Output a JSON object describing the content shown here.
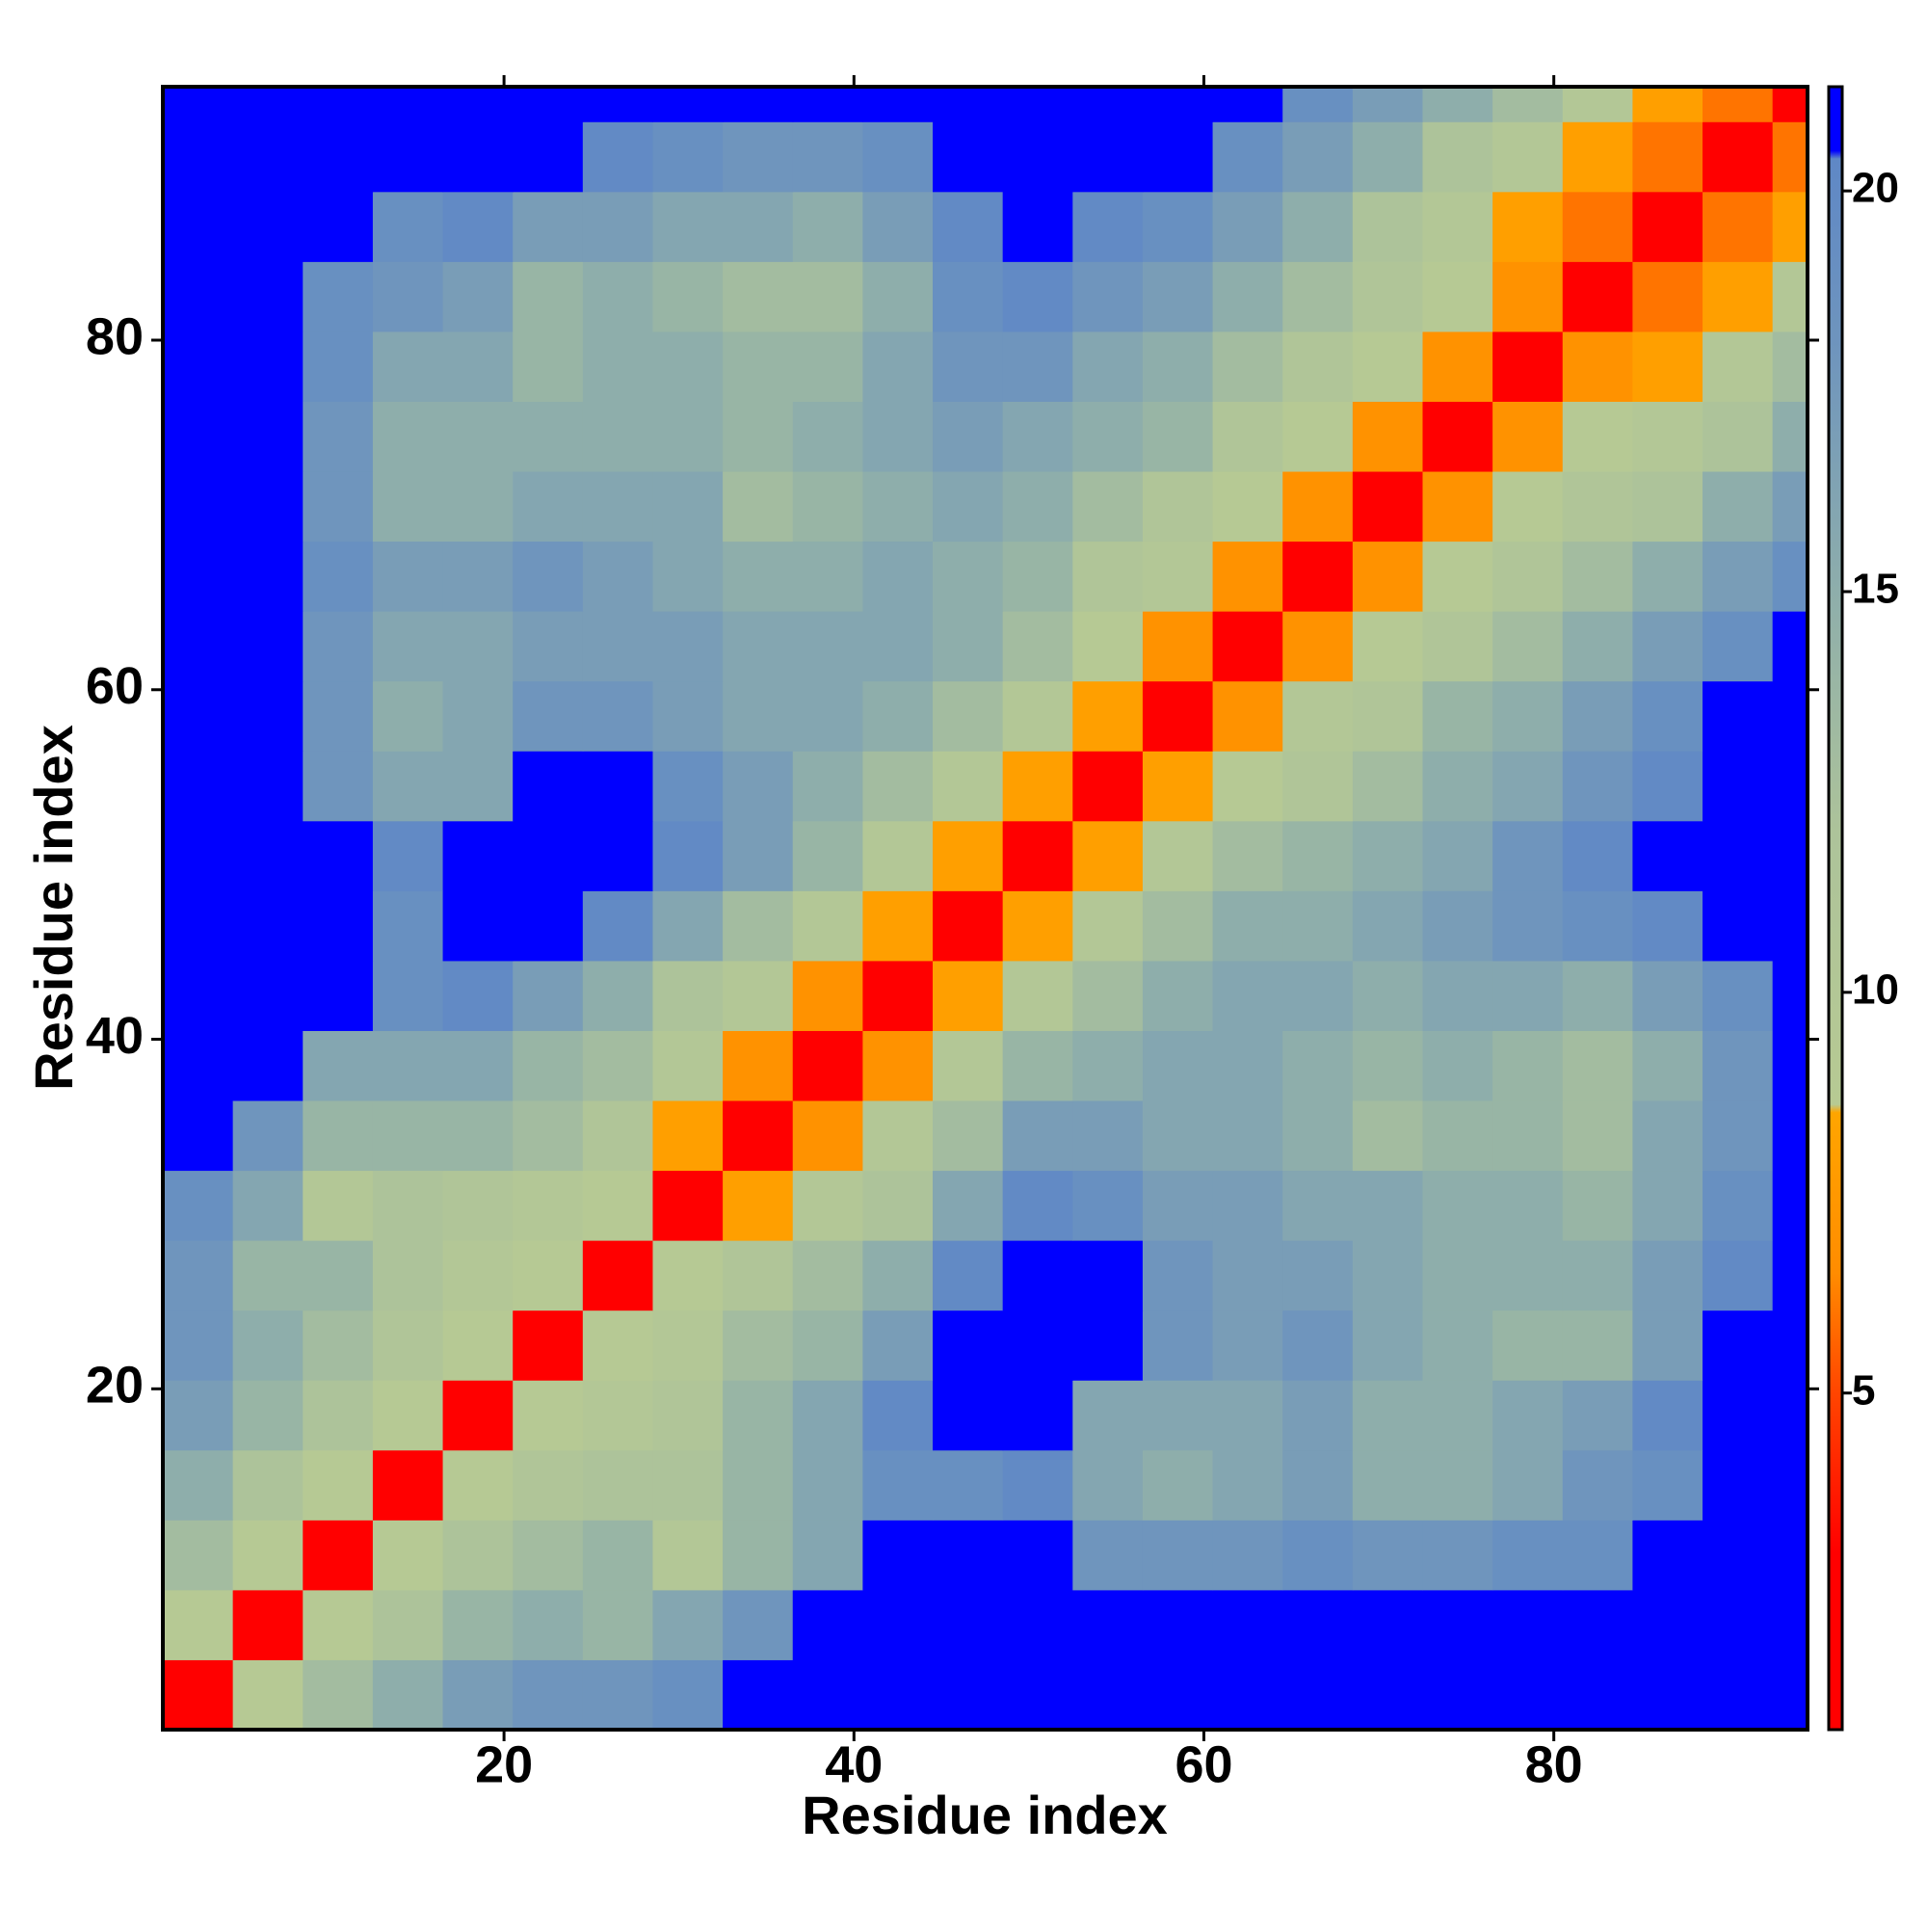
{
  "chart_data": {
    "type": "heatmap",
    "x_label": "Residue index",
    "y_label": "Residue index",
    "xbins": [
      0.5,
      4.5,
      8.5,
      12.5,
      16.5,
      20.5,
      24.5,
      28.5,
      32.5,
      36.5,
      40.5,
      44.5,
      48.5,
      52.5,
      56.5,
      60.5,
      64.5,
      68.5,
      72.5,
      76.5,
      80.5,
      84.5,
      88.5,
      92.5,
      94.5
    ],
    "ybins": [
      0.5,
      4.5,
      8.5,
      12.5,
      16.5,
      20.5,
      24.5,
      28.5,
      32.5,
      36.5,
      40.5,
      44.5,
      48.5,
      52.5,
      56.5,
      60.5,
      64.5,
      68.5,
      72.5,
      76.5,
      80.5,
      84.5,
      88.5,
      92.5,
      94.5
    ],
    "z": [
      [
        2,
        9,
        13,
        15,
        17,
        18,
        18,
        19,
        21,
        21,
        21,
        21,
        21,
        21,
        21,
        21,
        21,
        21,
        21,
        21,
        21,
        21,
        21,
        21
      ],
      [
        9,
        2,
        9,
        12,
        14,
        15,
        14,
        16,
        18,
        21,
        21,
        21,
        21,
        21,
        21,
        21,
        21,
        21,
        21,
        21,
        21,
        21,
        21,
        21
      ],
      [
        13,
        9,
        2,
        9,
        12,
        13,
        14,
        10,
        14,
        16,
        21,
        21,
        21,
        18,
        18,
        18,
        19,
        18,
        18,
        19,
        19,
        21,
        21,
        21
      ],
      [
        15,
        12,
        9,
        2,
        9,
        11,
        12,
        12,
        14,
        16,
        19,
        19,
        20,
        16,
        15,
        16,
        17,
        15,
        15,
        16,
        18,
        19,
        21,
        21
      ],
      [
        17,
        14,
        12,
        9,
        2,
        9,
        10,
        11,
        14,
        16,
        20,
        21,
        21,
        16,
        16,
        16,
        17,
        15,
        15,
        16,
        17,
        20,
        21,
        21
      ],
      [
        18,
        15,
        13,
        11,
        9,
        2,
        9,
        10,
        13,
        14,
        17,
        21,
        21,
        21,
        18,
        17,
        18,
        16,
        15,
        14,
        14,
        17,
        21,
        21
      ],
      [
        18,
        14,
        14,
        12,
        10,
        9,
        2,
        9,
        11,
        13,
        15,
        20,
        21,
        21,
        18,
        17,
        17,
        16,
        15,
        15,
        15,
        17,
        20,
        21
      ],
      [
        19,
        16,
        10,
        12,
        11,
        10,
        9,
        2,
        8,
        10,
        12,
        16,
        20,
        19,
        17,
        17,
        16,
        16,
        15,
        15,
        14,
        16,
        19,
        21
      ],
      [
        21,
        18,
        14,
        14,
        14,
        13,
        11,
        8,
        2,
        7,
        10,
        13,
        17,
        17,
        16,
        16,
        15,
        13,
        14,
        14,
        13,
        16,
        18,
        21
      ],
      [
        21,
        21,
        16,
        16,
        16,
        14,
        13,
        10,
        7,
        2,
        7,
        10,
        14,
        15,
        16,
        16,
        15,
        14,
        15,
        14,
        13,
        15,
        18,
        21
      ],
      [
        21,
        21,
        21,
        19,
        20,
        17,
        15,
        12,
        10,
        7,
        2,
        8,
        10,
        13,
        15,
        16,
        16,
        15,
        16,
        16,
        15,
        17,
        19,
        21
      ],
      [
        21,
        21,
        21,
        19,
        21,
        21,
        20,
        16,
        13,
        10,
        8,
        2,
        8,
        10,
        13,
        15,
        15,
        16,
        17,
        18,
        19,
        20,
        21,
        21
      ],
      [
        21,
        21,
        21,
        20,
        21,
        21,
        21,
        20,
        17,
        14,
        10,
        8,
        2,
        8,
        10,
        13,
        14,
        15,
        16,
        18,
        20,
        21,
        21,
        21
      ],
      [
        21,
        21,
        18,
        16,
        16,
        21,
        21,
        19,
        17,
        15,
        13,
        10,
        8,
        2,
        8,
        9,
        11,
        13,
        15,
        16,
        18,
        20,
        21,
        21
      ],
      [
        21,
        21,
        18,
        15,
        16,
        18,
        18,
        17,
        16,
        16,
        15,
        13,
        10,
        8,
        2,
        7,
        10,
        11,
        14,
        15,
        17,
        19,
        21,
        21
      ],
      [
        21,
        21,
        18,
        16,
        16,
        17,
        17,
        17,
        16,
        16,
        16,
        15,
        13,
        9,
        7,
        2,
        7,
        9,
        11,
        13,
        15,
        17,
        19,
        21
      ],
      [
        21,
        21,
        19,
        17,
        17,
        18,
        17,
        16,
        15,
        15,
        16,
        15,
        14,
        11,
        10,
        7,
        2,
        7,
        9,
        11,
        13,
        15,
        17,
        19
      ],
      [
        21,
        21,
        18,
        15,
        15,
        16,
        16,
        16,
        13,
        14,
        15,
        16,
        15,
        13,
        11,
        9,
        7,
        2,
        7,
        9,
        11,
        12,
        15,
        17
      ],
      [
        21,
        21,
        18,
        15,
        15,
        15,
        15,
        15,
        14,
        15,
        16,
        17,
        16,
        15,
        14,
        11,
        9,
        7,
        2,
        7,
        9,
        10,
        12,
        15
      ],
      [
        21,
        21,
        19,
        16,
        16,
        14,
        15,
        15,
        14,
        14,
        16,
        18,
        18,
        16,
        15,
        13,
        11,
        9,
        7,
        2,
        7,
        8,
        10,
        13
      ],
      [
        21,
        21,
        19,
        18,
        17,
        14,
        15,
        14,
        13,
        13,
        15,
        19,
        20,
        18,
        17,
        15,
        13,
        11,
        9,
        7,
        2,
        6,
        8,
        10
      ],
      [
        21,
        21,
        21,
        19,
        20,
        17,
        17,
        16,
        16,
        15,
        17,
        20,
        21,
        20,
        19,
        17,
        15,
        12,
        10,
        8,
        6,
        2,
        6,
        8
      ],
      [
        21,
        21,
        21,
        21,
        21,
        21,
        20,
        19,
        18,
        18,
        19,
        21,
        21,
        21,
        21,
        19,
        17,
        15,
        12,
        10,
        8,
        6,
        2,
        6
      ],
      [
        21,
        21,
        21,
        21,
        21,
        21,
        21,
        21,
        21,
        21,
        21,
        21,
        21,
        21,
        21,
        21,
        19,
        17,
        15,
        13,
        10,
        8,
        6,
        2
      ]
    ],
    "xlim": [
      0.5,
      94.5
    ],
    "ylim": [
      0.5,
      94.5
    ],
    "xticks": [
      20,
      40,
      60,
      80
    ],
    "yticks": [
      20,
      40,
      60,
      80
    ],
    "colorbar": {
      "clim": [
        0.8,
        21.3
      ],
      "ticks": [
        5,
        10,
        15,
        20
      ],
      "colorscale": [
        [
          0.8,
          "#ff0000"
        ],
        [
          3,
          "#ff0000"
        ],
        [
          5,
          "#ff4500"
        ],
        [
          6.5,
          "#ff8c00"
        ],
        [
          8.5,
          "#ffa500"
        ],
        [
          8.6,
          "#b7ca93"
        ],
        [
          12,
          "#adc39a"
        ],
        [
          15,
          "#8eaeab"
        ],
        [
          18,
          "#6f95bd"
        ],
        [
          20.4,
          "#5f88c6"
        ],
        [
          20.5,
          "#0000ff"
        ],
        [
          21.3,
          "#0000ff"
        ]
      ]
    }
  }
}
